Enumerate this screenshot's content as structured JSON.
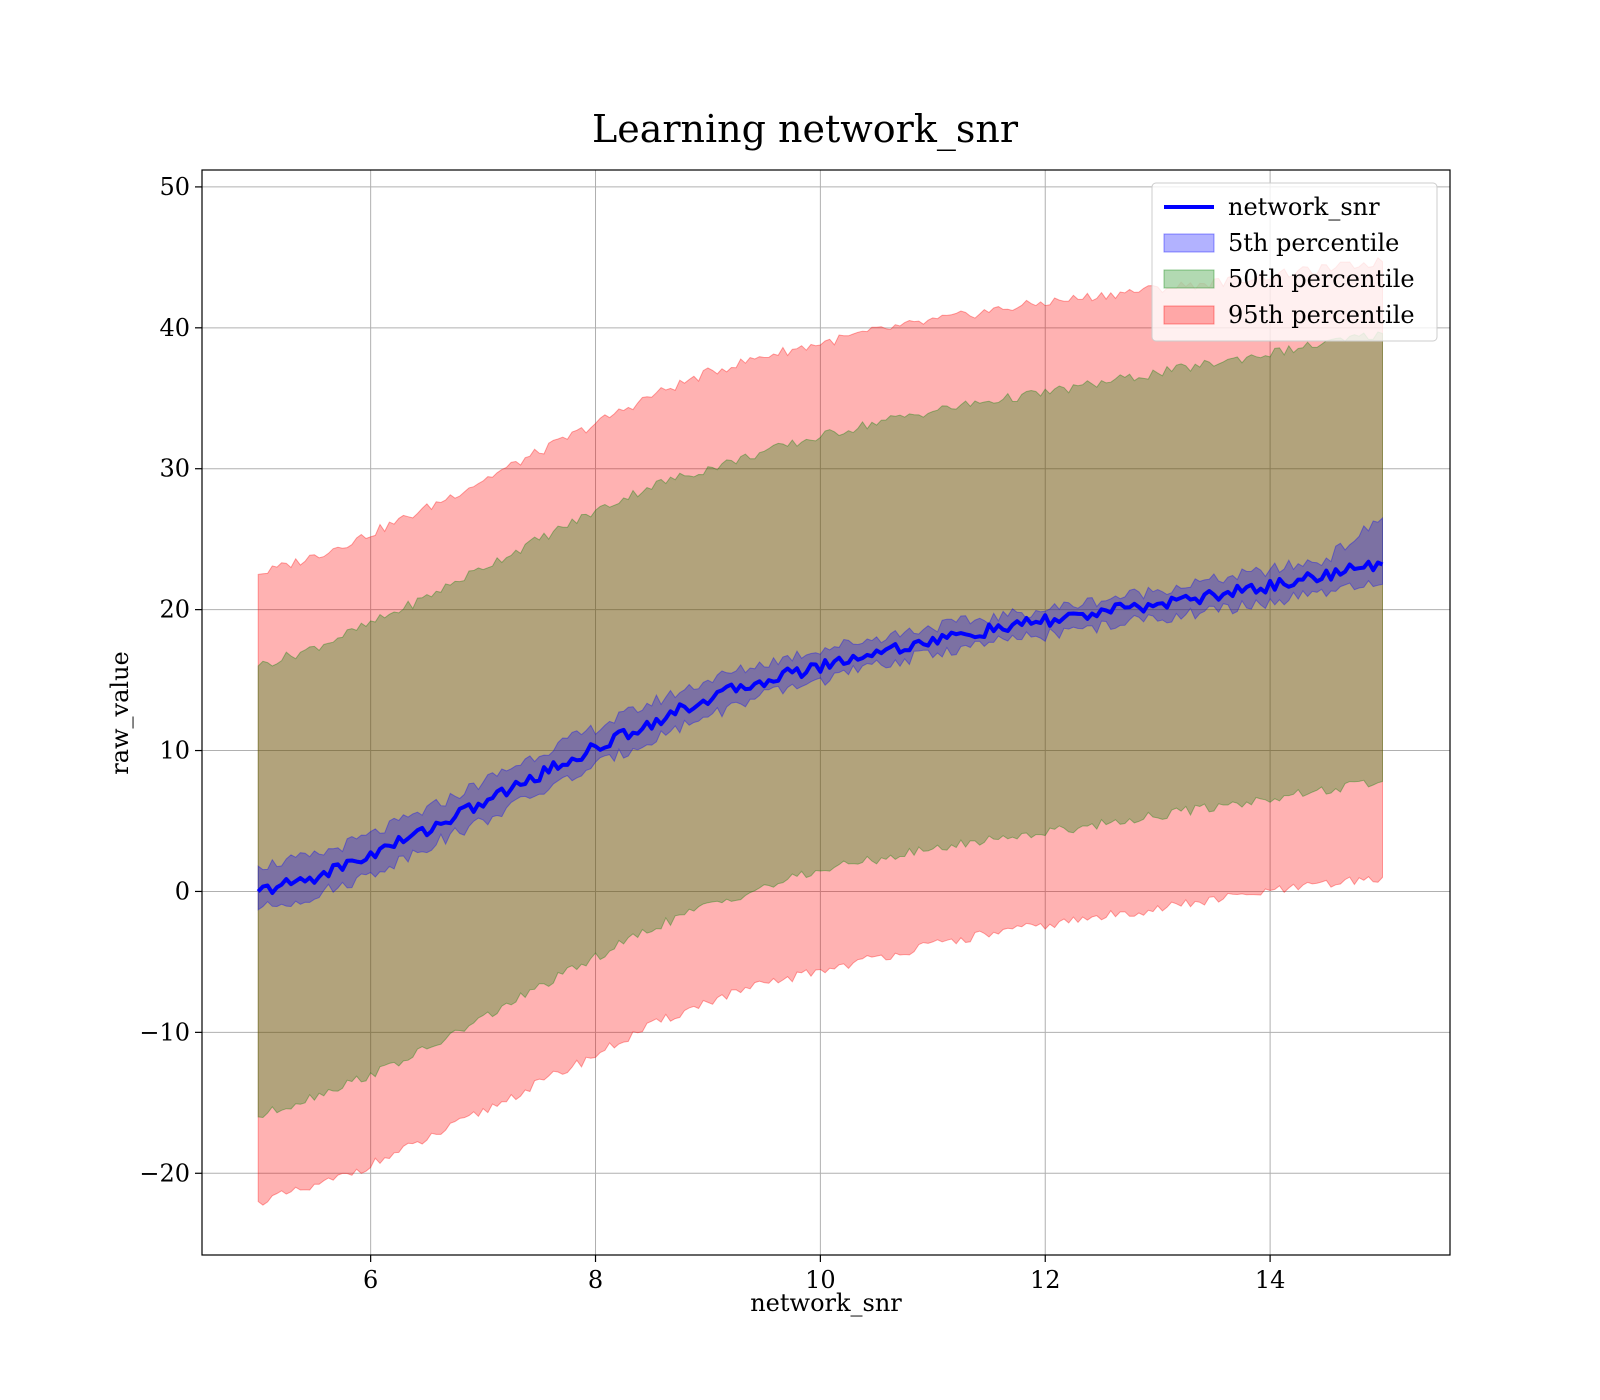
{
  "chart_data": {
    "type": "area",
    "title": "Learning network_snr",
    "xlabel": "network_snr",
    "ylabel": "raw_value",
    "xlim": [
      4.5,
      15.6
    ],
    "ylim": [
      -25.8,
      51.2
    ],
    "x_ticks": [
      6,
      8,
      10,
      12,
      14
    ],
    "y_ticks": [
      -20,
      -10,
      0,
      10,
      20,
      30,
      40,
      50
    ],
    "x_tick_labels": [
      "6",
      "8",
      "10",
      "12",
      "14"
    ],
    "y_tick_labels": [
      "−20",
      "−10",
      "0",
      "10",
      "20",
      "30",
      "40",
      "50"
    ],
    "grid": true,
    "legend_position": "top-right",
    "x": [
      5.0,
      5.5,
      6.0,
      6.5,
      7.0,
      7.5,
      8.0,
      8.5,
      9.0,
      9.5,
      10.0,
      10.5,
      11.0,
      11.5,
      12.0,
      12.5,
      13.0,
      13.5,
      14.0,
      14.5,
      15.0
    ],
    "series": [
      {
        "name": "network_snr",
        "kind": "line",
        "color": "#0000ff",
        "values": [
          0.0,
          1.0,
          2.6,
          4.4,
          6.3,
          8.3,
          10.2,
          12.0,
          13.7,
          15.0,
          16.0,
          17.0,
          17.8,
          18.5,
          19.2,
          19.8,
          20.4,
          21.0,
          21.7,
          22.5,
          23.2
        ]
      },
      {
        "name": "5th percentile",
        "kind": "band",
        "color": "#0000ff",
        "lower": [
          -1.3,
          -0.3,
          1.2,
          3.2,
          5.0,
          7.0,
          8.9,
          10.8,
          12.5,
          13.9,
          15.0,
          16.0,
          16.9,
          17.6,
          18.2,
          18.8,
          19.4,
          19.9,
          20.5,
          21.2,
          21.8
        ],
        "upper": [
          1.8,
          2.5,
          4.0,
          5.8,
          7.8,
          9.8,
          11.6,
          13.4,
          15.0,
          16.2,
          17.2,
          18.0,
          18.8,
          19.4,
          20.0,
          20.7,
          21.4,
          22.1,
          22.8,
          23.6,
          26.5
        ]
      },
      {
        "name": "50th percentile",
        "kind": "band",
        "color": "#008000",
        "lower": [
          -16.0,
          -14.5,
          -13.0,
          -11.2,
          -9.0,
          -6.8,
          -4.7,
          -2.6,
          -1.0,
          0.3,
          1.5,
          2.3,
          3.0,
          3.7,
          4.2,
          4.8,
          5.4,
          6.0,
          6.6,
          7.2,
          7.8
        ],
        "upper": [
          16.0,
          17.3,
          19.0,
          20.9,
          23.0,
          25.0,
          27.0,
          28.8,
          30.0,
          31.2,
          32.3,
          33.3,
          34.1,
          34.8,
          35.4,
          36.1,
          36.8,
          37.5,
          38.2,
          38.9,
          39.6
        ]
      },
      {
        "name": "95th percentile",
        "kind": "band",
        "color": "#ff0000",
        "lower": [
          -22.0,
          -21.0,
          -19.4,
          -17.6,
          -15.6,
          -13.6,
          -11.6,
          -9.5,
          -7.8,
          -6.6,
          -5.6,
          -4.7,
          -3.8,
          -3.0,
          -2.4,
          -1.8,
          -1.2,
          -0.6,
          0.0,
          0.5,
          1.0
        ],
        "upper": [
          22.5,
          23.8,
          25.4,
          27.2,
          29.2,
          31.2,
          33.2,
          35.2,
          36.8,
          38.0,
          38.9,
          39.8,
          40.5,
          41.2,
          41.8,
          42.3,
          42.8,
          43.2,
          43.7,
          44.2,
          44.7
        ]
      }
    ]
  }
}
